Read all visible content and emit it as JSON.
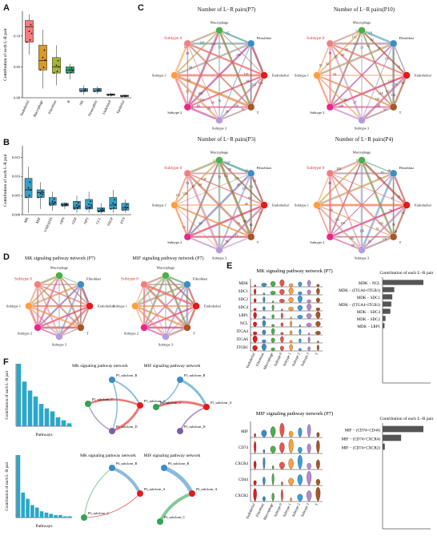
{
  "panels": {
    "A": "A",
    "B": "B",
    "C": "C",
    "D": "D",
    "E": "E",
    "F": "F"
  },
  "colors": {
    "endothelial": "#e03c31",
    "macrophage": "#c58a1a",
    "fibroblast": "#8da21a",
    "t": "#2ca25f",
    "subtype0": "#e8564b",
    "subtype1": "#f39c3b",
    "subtype2": "#3b9ed8",
    "subtype3": "#b688d6",
    "pink": "#e7298a",
    "blue": "#2c7fb8",
    "green": "#31a354",
    "brown": "#a6611a",
    "bar_b": "#35a0c8",
    "bar_f": "#2aa7c9"
  },
  "chart_a": {
    "ylabel": "Contribution of each L-R pair",
    "yticks": [
      "0.00",
      "0.05",
      "0.10"
    ],
    "categories": [
      "Endothelial",
      "Macrophage",
      "Fibroblast",
      "B",
      "NK",
      "Neutrophils",
      "Undefined",
      "Epithelial"
    ],
    "box_colors": [
      "#f47c7c",
      "#d99a2b",
      "#a7b531",
      "#33a970",
      "#6fb7d8",
      "#6fb7d8",
      "#6fb7d8",
      "#6fb7d8"
    ],
    "boxes": [
      [
        0.07,
        0.09,
        0.115,
        0.125,
        0.135
      ],
      [
        0.015,
        0.045,
        0.06,
        0.085,
        0.11
      ],
      [
        0.02,
        0.04,
        0.05,
        0.065,
        0.085
      ],
      [
        0.03,
        0.04,
        0.045,
        0.05,
        0.055
      ],
      [
        0.005,
        0.01,
        0.012,
        0.015,
        0.02
      ],
      [
        0.006,
        0.01,
        0.012,
        0.015,
        0.018
      ],
      [
        0.002,
        0.004,
        0.005,
        0.006,
        0.008
      ],
      [
        0.001,
        0.002,
        0.003,
        0.004,
        0.005
      ]
    ],
    "ylim": [
      0,
      0.14
    ]
  },
  "chart_b": {
    "ylabel": "Contribution of each L-R pair",
    "yticks": [
      "0.000",
      "0.005",
      "0.010",
      "0.015"
    ],
    "categories": [
      "MK",
      "MIF",
      "VISFATIN",
      "OPN",
      "GDF",
      "NPY",
      "CCL",
      "VEGF",
      "PTN"
    ],
    "boxes": [
      [
        0.0005,
        0.0045,
        0.0065,
        0.0095,
        0.0125
      ],
      [
        0.0015,
        0.0045,
        0.0058,
        0.0065,
        0.0085
      ],
      [
        0.001,
        0.0025,
        0.003,
        0.0045,
        0.006
      ],
      [
        0.0015,
        0.0023,
        0.0026,
        0.003,
        0.0033
      ],
      [
        0.0005,
        0.0015,
        0.002,
        0.0035,
        0.005
      ],
      [
        0.0005,
        0.0015,
        0.002,
        0.004,
        0.006
      ],
      [
        0.0003,
        0.0008,
        0.001,
        0.0018,
        0.003
      ],
      [
        0.0005,
        0.0015,
        0.0025,
        0.0045,
        0.0065
      ],
      [
        0.0005,
        0.0012,
        0.0018,
        0.003,
        0.004
      ]
    ],
    "ylim": [
      0,
      0.018
    ]
  },
  "chart_c": {
    "titles": [
      "Number of L−R pairs(P7)",
      "Number of L−R pairs(P10)",
      "Number of L−R pairs(P3)",
      "Number of L−R pairs(P4)"
    ],
    "nodes": [
      "Macrophage",
      "Fibroblast",
      "Endothelial",
      "T",
      "Subtype 3",
      "Subtype 2",
      "Subtype 1",
      "Subtype 0"
    ]
  },
  "chart_d": {
    "titles": [
      "MK signaling pathway network (P7)",
      "MIF signaling pathway network (P7)"
    ],
    "nodes": [
      "Macrophage",
      "Fibroblast",
      "Endothelial",
      "T",
      "Subtype 3",
      "Subtype 2",
      "Subtype 1",
      "Subtype 0"
    ]
  },
  "chart_e_top": {
    "title": "MK signaling pathway network (P7)",
    "genes": [
      "MDK",
      "SDC1",
      "SDC2",
      "SDC4",
      "LRP1",
      "NCL",
      "ITGA4",
      "ITGA6",
      "ITGB1"
    ],
    "cells": [
      "Endothelial",
      "Fibroblast",
      "Macrophage",
      "Subtype 0",
      "Subtype 1",
      "Subtype 2",
      "Subtype 3",
      "T"
    ],
    "bar_title": "Contribution of each L−R pair",
    "pairs": [
      "MDK − NCL",
      "MDK − (ITGA6+ITGB1)",
      "MDK − SDC1",
      "MDK − (ITGA4+ITGB1)",
      "MDK − SDC4",
      "MDK − SDC2",
      "MDK − LRP1"
    ],
    "values": [
      0.42,
      0.12,
      0.1,
      0.09,
      0.08,
      0.03,
      0.02
    ]
  },
  "chart_e_bottom": {
    "title": "MIF signaling pathway network (P7)",
    "genes": [
      "MIF",
      "CD74",
      "CXCR4",
      "CD44",
      "CXCR2"
    ],
    "cells": [
      "Endothelial",
      "Fibroblast",
      "Macrophage",
      "Subtype 0",
      "Subtype 1",
      "Subtype 2",
      "Subtype 3",
      "T"
    ],
    "bar_title": "Contribution of each L−R pair",
    "pairs": [
      "MIF − (CD74+CD44)",
      "MIF − (CD74+CXCR4)",
      "MIF − (CD74+CXCR2)"
    ],
    "values": [
      0.55,
      0.25,
      0.03
    ]
  },
  "chart_f": {
    "ylabel": "Contribution of each L−R pair",
    "xlabel": "Pathways",
    "top_values": [
      0.42,
      0.3,
      0.24,
      0.2,
      0.15,
      0.12,
      0.1,
      0.06,
      0.04,
      0.02
    ],
    "bottom_values": [
      0.5,
      0.2,
      0.15,
      0.1,
      0.08,
      0.05,
      0.04,
      0.03,
      0.02,
      0.02,
      0.01,
      0.01
    ],
    "net_titles": [
      "MK signaling pathway network",
      "MIF signaling pathway network",
      "MK signaling pathway network",
      "MIF signaling pathway network"
    ],
    "top_nodes": [
      "P5_subclone_B",
      "P5_subclone_C",
      "P5_subclone_D",
      "P5_subclone_A"
    ],
    "bottom_nodes": [
      "P6_subclone_B",
      "P6_subclone_A",
      "P6_subclone_C"
    ]
  }
}
